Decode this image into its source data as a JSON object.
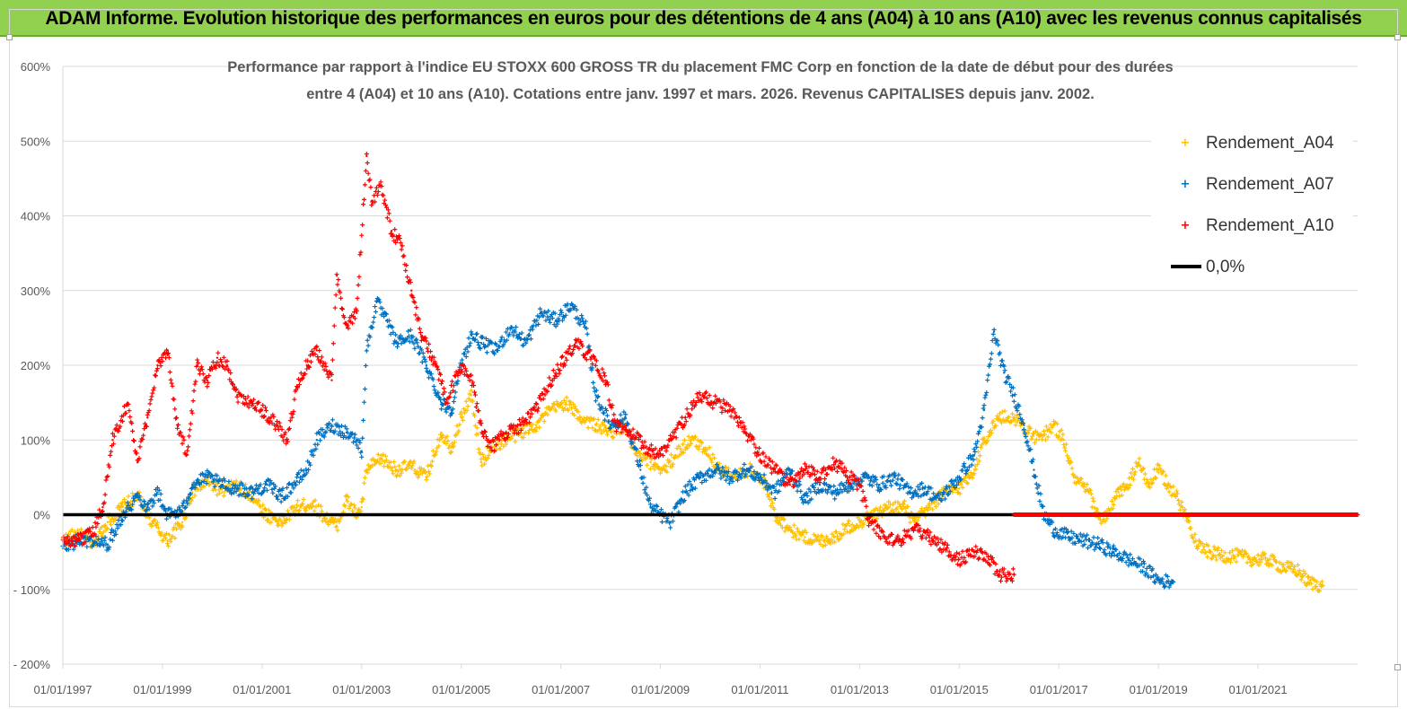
{
  "banner": {
    "title": "ADAM Informe. Evolution historique des performances en euros pour des détentions de 4 ans (A04) à 10 ans (A10) avec les revenus connus capitalisés",
    "background_color": "#92d050"
  },
  "chart_data": {
    "type": "scatter",
    "title_line1": "Performance par rapport à l'indice EU STOXX 600 GROSS TR  du placement FMC Corp en fonction de la date de début pour des durées",
    "title_line2": "entre 4 (A04) et 10 ans (A10). Cotations entre janv. 1997 et mars. 2026. Revenus CAPITALISES depuis janv. 2002.",
    "x_axis": {
      "type": "date",
      "range": [
        1997.0,
        2023.0
      ],
      "tick_labels": [
        "01/01/1997",
        "01/01/1999",
        "01/01/2001",
        "01/01/2003",
        "01/01/2005",
        "01/01/2007",
        "01/01/2009",
        "01/01/2011",
        "01/01/2013",
        "01/01/2015",
        "01/01/2017",
        "01/01/2019",
        "01/01/2021"
      ],
      "tick_years": [
        1997,
        1999,
        2001,
        2003,
        2005,
        2007,
        2009,
        2011,
        2013,
        2015,
        2017,
        2019,
        2021
      ]
    },
    "y_axis": {
      "range": [
        -200,
        600
      ],
      "ticks": [
        -200,
        -100,
        0,
        100,
        200,
        300,
        400,
        500,
        600
      ],
      "tick_labels": [
        "- 200%",
        "- 100%",
        "0%",
        "100%",
        "200%",
        "300%",
        "400%",
        "500%",
        "600%"
      ],
      "grid": true
    },
    "legend_position": "top-right",
    "series": [
      {
        "name": "Rendement_A04",
        "color": "#ffc000",
        "marker": "+",
        "points": [
          [
            1997.0,
            -35
          ],
          [
            1997.3,
            -25
          ],
          [
            1997.6,
            -40
          ],
          [
            1997.9,
            -10
          ],
          [
            1998.2,
            10
          ],
          [
            1998.5,
            25
          ],
          [
            1998.8,
            -10
          ],
          [
            1999.1,
            -35
          ],
          [
            1999.4,
            -10
          ],
          [
            1999.6,
            30
          ],
          [
            1999.9,
            45
          ],
          [
            2000.2,
            30
          ],
          [
            2000.5,
            40
          ],
          [
            2000.8,
            25
          ],
          [
            2001.1,
            0
          ],
          [
            2001.4,
            -10
          ],
          [
            2001.7,
            10
          ],
          [
            2002.0,
            15
          ],
          [
            2002.3,
            -5
          ],
          [
            2002.5,
            -15
          ],
          [
            2002.7,
            20
          ],
          [
            2002.9,
            0
          ],
          [
            2003.0,
            10
          ],
          [
            2003.1,
            60
          ],
          [
            2003.4,
            75
          ],
          [
            2003.7,
            60
          ],
          [
            2004.0,
            65
          ],
          [
            2004.3,
            50
          ],
          [
            2004.6,
            110
          ],
          [
            2004.8,
            90
          ],
          [
            2005.0,
            130
          ],
          [
            2005.2,
            160
          ],
          [
            2005.4,
            70
          ],
          [
            2005.6,
            90
          ],
          [
            2005.9,
            100
          ],
          [
            2006.2,
            110
          ],
          [
            2006.5,
            120
          ],
          [
            2006.8,
            140
          ],
          [
            2007.1,
            150
          ],
          [
            2007.4,
            130
          ],
          [
            2007.7,
            120
          ],
          [
            2008.0,
            110
          ],
          [
            2008.3,
            120
          ],
          [
            2008.5,
            80
          ],
          [
            2008.8,
            70
          ],
          [
            2009.1,
            60
          ],
          [
            2009.3,
            80
          ],
          [
            2009.6,
            100
          ],
          [
            2009.9,
            90
          ],
          [
            2010.2,
            60
          ],
          [
            2010.5,
            50
          ],
          [
            2010.8,
            60
          ],
          [
            2011.1,
            40
          ],
          [
            2011.3,
            0
          ],
          [
            2011.6,
            -20
          ],
          [
            2011.9,
            -30
          ],
          [
            2012.2,
            -35
          ],
          [
            2012.5,
            -30
          ],
          [
            2012.8,
            -15
          ],
          [
            2013.0,
            -10
          ],
          [
            2013.3,
            0
          ],
          [
            2013.6,
            10
          ],
          [
            2013.9,
            10
          ],
          [
            2014.1,
            -10
          ],
          [
            2014.4,
            10
          ],
          [
            2014.7,
            30
          ],
          [
            2015.0,
            35
          ],
          [
            2015.3,
            60
          ],
          [
            2015.5,
            100
          ],
          [
            2015.8,
            130
          ],
          [
            2016.1,
            130
          ],
          [
            2016.4,
            110
          ],
          [
            2016.6,
            100
          ],
          [
            2016.9,
            120
          ],
          [
            2017.1,
            100
          ],
          [
            2017.3,
            50
          ],
          [
            2017.6,
            30
          ],
          [
            2017.8,
            -5
          ],
          [
            2018.0,
            0
          ],
          [
            2018.2,
            30
          ],
          [
            2018.4,
            40
          ],
          [
            2018.6,
            70
          ],
          [
            2018.8,
            40
          ],
          [
            2019.0,
            60
          ],
          [
            2019.2,
            40
          ],
          [
            2019.4,
            20
          ],
          [
            2019.6,
            -10
          ],
          [
            2019.8,
            -40
          ],
          [
            2020.0,
            -50
          ],
          [
            2020.3,
            -55
          ],
          [
            2020.6,
            -55
          ],
          [
            2020.9,
            -60
          ],
          [
            2021.2,
            -60
          ],
          [
            2021.5,
            -70
          ],
          [
            2021.8,
            -75
          ],
          [
            2022.0,
            -90
          ],
          [
            2022.3,
            -95
          ]
        ]
      },
      {
        "name": "Rendement_A07",
        "color": "#0070c0",
        "marker": "+",
        "points": [
          [
            1997.0,
            -45
          ],
          [
            1997.3,
            -35
          ],
          [
            1997.6,
            -35
          ],
          [
            1997.9,
            -40
          ],
          [
            1998.2,
            0
          ],
          [
            1998.5,
            25
          ],
          [
            1998.7,
            10
          ],
          [
            1998.9,
            30
          ],
          [
            1999.1,
            0
          ],
          [
            1999.4,
            5
          ],
          [
            1999.6,
            40
          ],
          [
            1999.9,
            50
          ],
          [
            2000.2,
            40
          ],
          [
            2000.5,
            35
          ],
          [
            2000.8,
            30
          ],
          [
            2001.1,
            40
          ],
          [
            2001.4,
            25
          ],
          [
            2001.7,
            45
          ],
          [
            2001.9,
            60
          ],
          [
            2002.1,
            100
          ],
          [
            2002.4,
            120
          ],
          [
            2002.7,
            110
          ],
          [
            2002.9,
            100
          ],
          [
            2003.0,
            85
          ],
          [
            2003.1,
            220
          ],
          [
            2003.3,
            285
          ],
          [
            2003.5,
            260
          ],
          [
            2003.7,
            230
          ],
          [
            2004.0,
            240
          ],
          [
            2004.3,
            200
          ],
          [
            2004.6,
            150
          ],
          [
            2004.8,
            140
          ],
          [
            2005.0,
            200
          ],
          [
            2005.2,
            240
          ],
          [
            2005.4,
            230
          ],
          [
            2005.7,
            220
          ],
          [
            2006.0,
            250
          ],
          [
            2006.3,
            230
          ],
          [
            2006.6,
            270
          ],
          [
            2006.9,
            260
          ],
          [
            2007.2,
            280
          ],
          [
            2007.5,
            250
          ],
          [
            2007.7,
            160
          ],
          [
            2008.0,
            120
          ],
          [
            2008.3,
            130
          ],
          [
            2008.6,
            60
          ],
          [
            2008.8,
            10
          ],
          [
            2009.0,
            0
          ],
          [
            2009.2,
            -10
          ],
          [
            2009.5,
            30
          ],
          [
            2009.8,
            50
          ],
          [
            2010.1,
            60
          ],
          [
            2010.4,
            50
          ],
          [
            2010.7,
            60
          ],
          [
            2011.0,
            50
          ],
          [
            2011.3,
            30
          ],
          [
            2011.6,
            60
          ],
          [
            2011.9,
            20
          ],
          [
            2012.2,
            40
          ],
          [
            2012.5,
            30
          ],
          [
            2012.8,
            40
          ],
          [
            2013.1,
            50
          ],
          [
            2013.4,
            40
          ],
          [
            2013.7,
            50
          ],
          [
            2014.0,
            30
          ],
          [
            2014.3,
            35
          ],
          [
            2014.6,
            20
          ],
          [
            2015.0,
            50
          ],
          [
            2015.3,
            80
          ],
          [
            2015.5,
            140
          ],
          [
            2015.7,
            245
          ],
          [
            2015.9,
            190
          ],
          [
            2016.1,
            160
          ],
          [
            2016.3,
            120
          ],
          [
            2016.5,
            60
          ],
          [
            2016.7,
            0
          ],
          [
            2016.9,
            -20
          ],
          [
            2017.2,
            -30
          ],
          [
            2017.5,
            -35
          ],
          [
            2017.8,
            -40
          ],
          [
            2018.1,
            -50
          ],
          [
            2018.4,
            -60
          ],
          [
            2018.7,
            -70
          ],
          [
            2019.0,
            -88
          ],
          [
            2019.3,
            -90
          ]
        ]
      },
      {
        "name": "Rendement_A10",
        "color": "#ff0000",
        "marker": "+",
        "points": [
          [
            1997.0,
            -35
          ],
          [
            1997.3,
            -35
          ],
          [
            1997.6,
            -25
          ],
          [
            1997.8,
            10
          ],
          [
            1998.0,
            100
          ],
          [
            1998.3,
            150
          ],
          [
            1998.5,
            70
          ],
          [
            1998.7,
            130
          ],
          [
            1998.9,
            200
          ],
          [
            1999.1,
            220
          ],
          [
            1999.3,
            120
          ],
          [
            1999.5,
            80
          ],
          [
            1999.7,
            200
          ],
          [
            1999.9,
            180
          ],
          [
            2000.1,
            210
          ],
          [
            2000.3,
            200
          ],
          [
            2000.5,
            160
          ],
          [
            2000.8,
            150
          ],
          [
            2001.0,
            140
          ],
          [
            2001.3,
            120
          ],
          [
            2001.5,
            100
          ],
          [
            2001.7,
            170
          ],
          [
            2001.9,
            200
          ],
          [
            2002.1,
            220
          ],
          [
            2002.4,
            180
          ],
          [
            2002.5,
            320
          ],
          [
            2002.7,
            250
          ],
          [
            2002.9,
            270
          ],
          [
            2003.1,
            480
          ],
          [
            2003.2,
            420
          ],
          [
            2003.4,
            440
          ],
          [
            2003.6,
            380
          ],
          [
            2003.8,
            360
          ],
          [
            2004.0,
            300
          ],
          [
            2004.2,
            240
          ],
          [
            2004.5,
            200
          ],
          [
            2004.7,
            150
          ],
          [
            2005.0,
            200
          ],
          [
            2005.2,
            180
          ],
          [
            2005.4,
            120
          ],
          [
            2005.6,
            90
          ],
          [
            2005.9,
            110
          ],
          [
            2006.2,
            120
          ],
          [
            2006.5,
            140
          ],
          [
            2006.8,
            180
          ],
          [
            2007.1,
            210
          ],
          [
            2007.3,
            230
          ],
          [
            2007.6,
            210
          ],
          [
            2007.9,
            180
          ],
          [
            2008.1,
            120
          ],
          [
            2008.4,
            110
          ],
          [
            2008.7,
            90
          ],
          [
            2009.0,
            80
          ],
          [
            2009.2,
            100
          ],
          [
            2009.5,
            130
          ],
          [
            2009.8,
            160
          ],
          [
            2010.1,
            150
          ],
          [
            2010.4,
            140
          ],
          [
            2010.7,
            110
          ],
          [
            2011.0,
            80
          ],
          [
            2011.3,
            60
          ],
          [
            2011.6,
            40
          ],
          [
            2011.9,
            60
          ],
          [
            2012.2,
            50
          ],
          [
            2012.5,
            70
          ],
          [
            2012.8,
            50
          ],
          [
            2013.0,
            40
          ],
          [
            2013.2,
            -10
          ],
          [
            2013.5,
            -30
          ],
          [
            2013.8,
            -35
          ],
          [
            2014.1,
            -20
          ],
          [
            2014.4,
            -30
          ],
          [
            2015.0,
            -60
          ],
          [
            2015.3,
            -50
          ],
          [
            2015.6,
            -60
          ],
          [
            2015.8,
            -80
          ],
          [
            2016.1,
            -80
          ]
        ]
      },
      {
        "name": "0,0%",
        "color": "#000000",
        "marker": "line",
        "points": [
          [
            1997.0,
            0
          ],
          [
            2023.0,
            0
          ]
        ]
      }
    ]
  }
}
